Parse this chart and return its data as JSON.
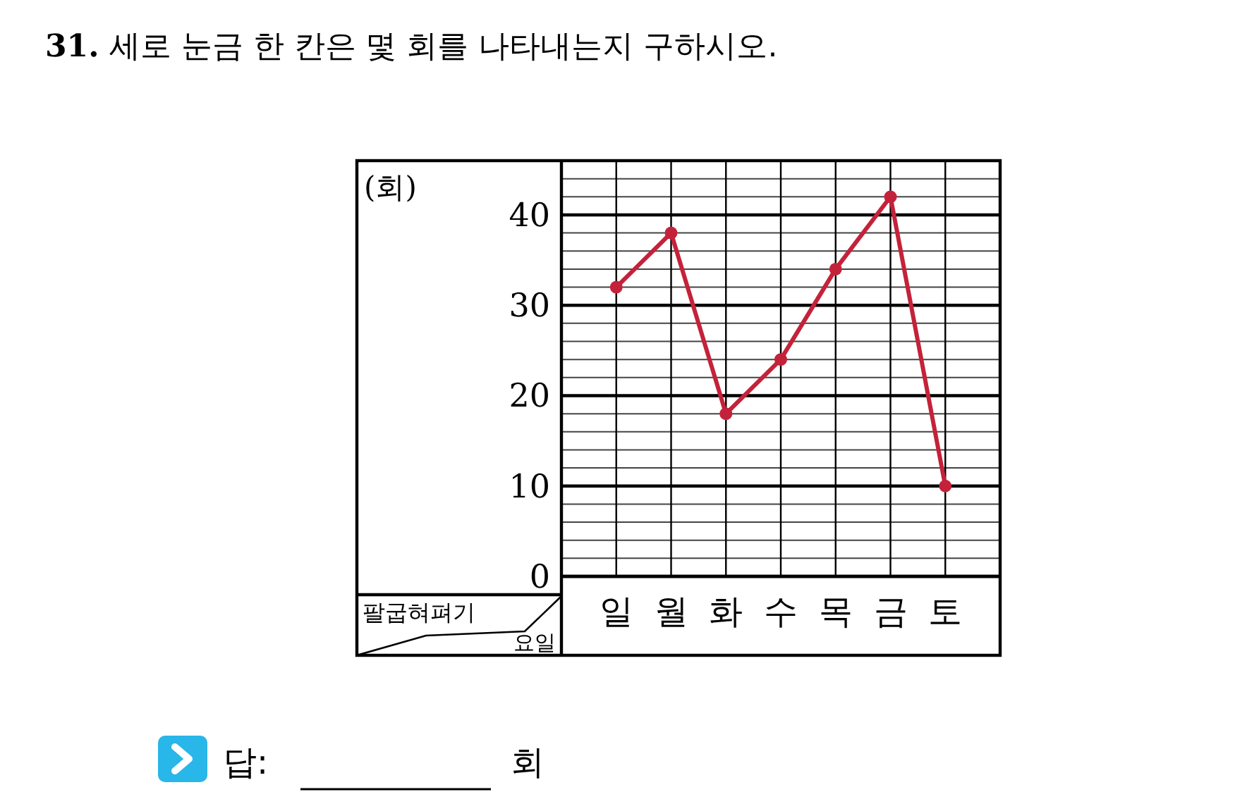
{
  "chart_data": {
    "type": "line",
    "title": "**31.** 세로 눈금 한 칸은 몇 회를 나타내는지 구하시오.",
    "categories": [
      "일",
      "월",
      "화",
      "수",
      "목",
      "금",
      "토"
    ],
    "series": [
      {
        "color": "#c4223a",
        "values": [
          32,
          38,
          18,
          24,
          34,
          42,
          10
        ]
      }
    ],
    "xlabel": "요일",
    "ylabel": "팔굽혀펴기",
    "ylim": [
      0,
      46
    ],
    "yticks": [
      0,
      {
        "value": 2,
        "label": null
      },
      {
        "value": 4,
        "label": null
      },
      {
        "value": 6,
        "label": null
      },
      {
        "value": 8,
        "label": null
      },
      10,
      {
        "value": 12,
        "label": null
      },
      {
        "value": 14,
        "label": null
      },
      {
        "value": 16,
        "label": null
      },
      {
        "value": 18,
        "label": null
      },
      20,
      {
        "value": 22,
        "label": null
      },
      {
        "value": 24,
        "label": null
      },
      {
        "value": 26,
        "label": null
      },
      {
        "value": 28,
        "label": null
      },
      30,
      {
        "value": 32,
        "label": null
      },
      {
        "value": 34,
        "label": null
      },
      {
        "value": 36,
        "label": null
      },
      {
        "value": 38,
        "label": null
      },
      40,
      {
        "value": 42,
        "label": null
      },
      {
        "value": 44,
        "label": null
      },
      {
        "value": 46,
        "label": null
      }
    ],
    "grid": true,
    "marker": "circle",
    "line_style": "solid",
    "annotations": [
      "(회)",
      "답:",
      "회"
    ]
  }
}
